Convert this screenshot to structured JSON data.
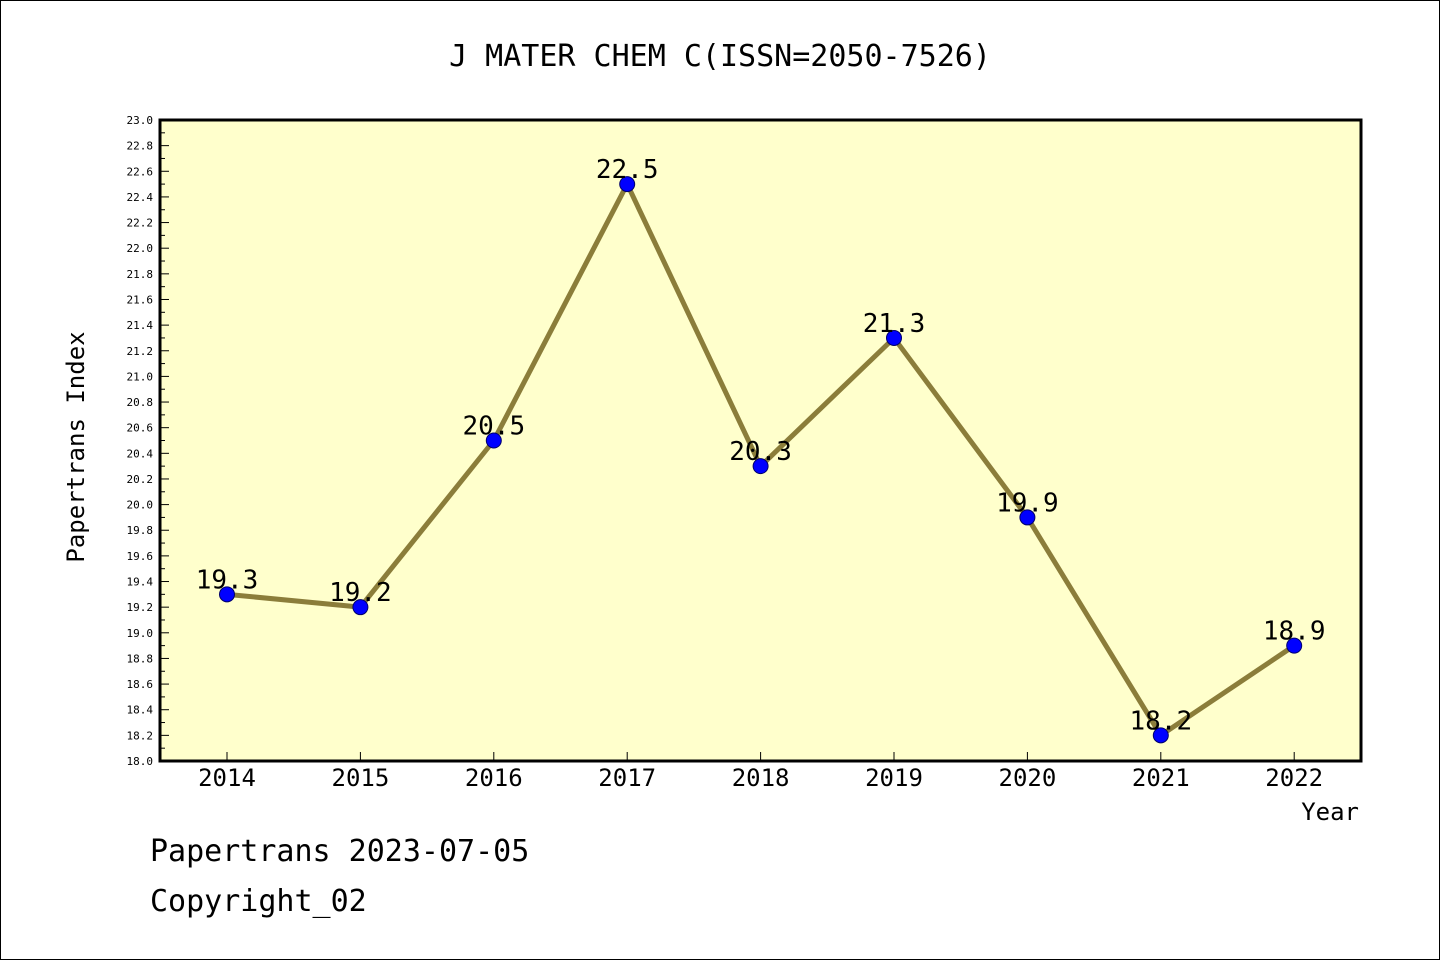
{
  "chart_data": {
    "type": "line",
    "title": "J MATER CHEM C(ISSN=2050-7526)",
    "xlabel": "Year",
    "ylabel": "Papertrans Index",
    "categories": [
      "2014",
      "2015",
      "2016",
      "2017",
      "2018",
      "2019",
      "2020",
      "2021",
      "2022"
    ],
    "series": [
      {
        "values": [
          19.3,
          19.2,
          20.5,
          22.5,
          20.3,
          21.3,
          19.9,
          18.2,
          18.9
        ]
      }
    ],
    "data_labels": [
      "19.3",
      "19.2",
      "20.5",
      "22.5",
      "20.3",
      "21.3",
      "19.9",
      "18.2",
      "18.9"
    ],
    "ylim": [
      18.0,
      23.0
    ],
    "y_major_step": 0.2,
    "y_minor_step": 0.1,
    "yticks": [
      "18.0",
      "18.2",
      "18.4",
      "18.6",
      "18.8",
      "19.0",
      "19.2",
      "19.4",
      "19.6",
      "19.8",
      "20.0",
      "20.2",
      "20.4",
      "20.6",
      "20.8",
      "21.0",
      "21.2",
      "21.4",
      "21.6",
      "21.8",
      "22.0",
      "22.2",
      "22.4",
      "22.6",
      "22.8",
      "23.0"
    ],
    "grid": false,
    "colors": {
      "plot_background": "#ffffcc",
      "line": "#8b7d3a",
      "marker": "#0000ff",
      "marker_edge": "#00006b"
    }
  },
  "footer": {
    "line1": "Papertrans 2023-07-05",
    "line2": "Copyright_02"
  }
}
